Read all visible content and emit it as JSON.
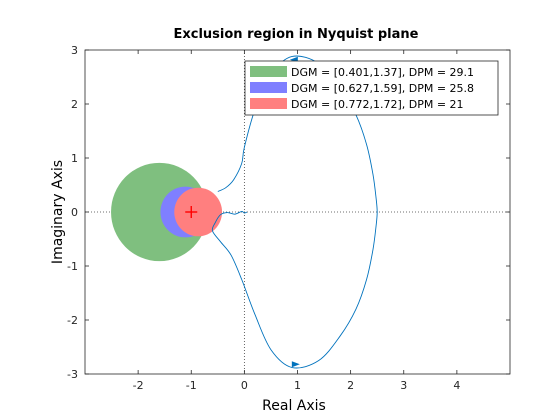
{
  "chart_data": {
    "type": "line",
    "title": "Exclusion region in Nyquist plane",
    "xlabel": "Real Axis",
    "ylabel": "Imaginary Axis",
    "xlim": [
      -3,
      5
    ],
    "ylim": [
      -3,
      3
    ],
    "xticks": [
      "-2",
      "-1",
      "0",
      "1",
      "2",
      "3",
      "4"
    ],
    "xtick_values": [
      -2,
      -1,
      0,
      1,
      2,
      3,
      4
    ],
    "yticks": [
      "-3",
      "-2",
      "-1",
      "0",
      "1",
      "2",
      "3"
    ],
    "ytick_values": [
      -3,
      -2,
      -1,
      0,
      1,
      2,
      3
    ],
    "grid": "dotted zero lines only",
    "legend_position": "top-right",
    "critical_point": {
      "x": -1,
      "y": 0,
      "marker": "+",
      "color": "#ff0000"
    },
    "series": [
      {
        "name": "DGM = [0.401,1.37], DPM = 29.1",
        "kind": "disk",
        "center": [
          -1.6,
          0
        ],
        "radius": 0.91,
        "color": "#7fbf7f"
      },
      {
        "name": "DGM = [0.627,1.59], DPM = 25.8",
        "kind": "disk",
        "center": [
          -1.11,
          0
        ],
        "radius": 0.47,
        "color": "#7f7fff"
      },
      {
        "name": "DGM = [0.772,1.72], DPM = 21",
        "kind": "disk",
        "center": [
          -0.87,
          0
        ],
        "radius": 0.45,
        "color": "#ff7f7f"
      },
      {
        "kind": "nyquist-curve",
        "color": "#0072bd",
        "x": [
          -0.5,
          -0.35,
          -0.2,
          -0.05,
          0,
          0.2,
          0.5,
          0.9,
          1.4,
          1.8,
          2.1,
          2.3,
          2.42,
          2.48,
          2.5,
          2.48,
          2.42,
          2.3,
          2.1,
          1.8,
          1.4,
          0.9,
          0.5,
          0.2,
          -0.05,
          -0.25,
          -0.45,
          -0.6,
          -0.55,
          -0.45,
          -0.32,
          -0.18,
          -0.05,
          0,
          0.05
        ],
        "y": [
          0.38,
          0.45,
          0.6,
          0.9,
          1.2,
          1.9,
          2.55,
          2.88,
          2.75,
          2.3,
          1.8,
          1.25,
          0.7,
          0.25,
          0,
          -0.25,
          -0.7,
          -1.25,
          -1.8,
          -2.3,
          -2.75,
          -2.88,
          -2.55,
          -1.9,
          -1.25,
          -0.8,
          -0.55,
          -0.35,
          -0.2,
          -0.05,
          -0.01,
          -0.04,
          0.01,
          -0.02,
          0
        ]
      }
    ]
  }
}
